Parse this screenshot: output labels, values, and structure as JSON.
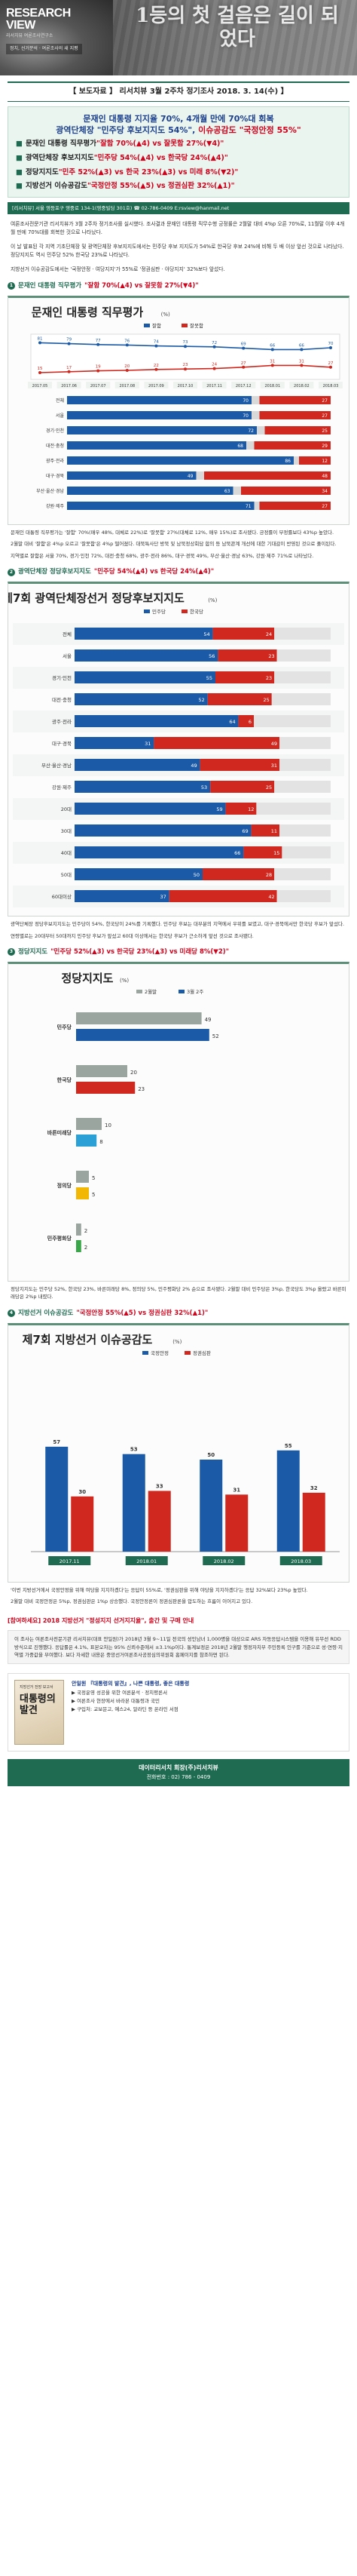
{
  "banner": {
    "brand_line1": "RESEARCH",
    "brand_line2": "VIEW",
    "brand_sub": "리서치뷰 여론조사연구소",
    "tag_text": "정치, 선거분석 · 여론조사의 새 지평",
    "slogan": "1등의 첫 걸음은 길이 되었다"
  },
  "header": {
    "release_title": "【 보도자료 】 리서치뷰 3월 2주차 정기조사 2018. 3. 14(수) 】",
    "headline_line1": "문재인 대통령 지지율 70%, 4개월 만에 70%대 회복",
    "headline_line2_a": "광역단체장 \"민주당 후보지지도 54%\", ",
    "headline_line2_b": "이슈공감도 \"국정안정 55%\"",
    "key_points": [
      {
        "label": "문재인 대통령 직무평가 ",
        "value": "\"잘함 70%(▲4) vs 잘못함 27%(▼4)\""
      },
      {
        "label": "광역단체장 후보지지도 ",
        "value": "\"민주당 54%(▲4) vs 한국당 24%(▲4)\""
      },
      {
        "label": "정당지지도 ",
        "value": "\"민주 52%(▲3) vs 한국 23%(▲3) vs 미래 8%(▼2)\""
      },
      {
        "label": "지방선거 이슈공감도 ",
        "value": "\"국정안정 55%(▲5) vs 정권심판 32%(▲1)\""
      }
    ],
    "contact": "[리서치뷰] 서울 영등포구 영중로 134-1(영중빌딩 301호) ☎ 02-786-0409   E:rsview@hanmail.net"
  },
  "intro": "여론조사전문기관 리서치뷰가 3월 2주차 정기조사를 실시했다. 조사결과 문재인 대통령 직무수행 긍정률은 2월말 대비 4%p 오른 70%로, 11월말 이후 4개월 만에 70%대를 회복한 것으로 나타났다.",
  "intro2": "이 날 발표된 각 지역 기초단체장 및 광역단체장 후보지지도에서는 민주당 후보 지지도가 54%로 한국당 후보 24%에 비해 두 배 이상 앞선 것으로 나타났다. 정당지지도 역시 민주당 52% 한국당 23%로 나타났다.",
  "intro3": "지방선거 이슈공감도에서는 '국정안정 · 여당지지'가 55%로 '정권심판 · 야당지지' 32%보다 앞섰다.",
  "sections": {
    "s1": {
      "title_a": "문재인 대통령 직무평가 ",
      "title_b": "\"잘함 70%(▲4) vs 잘못함 27%(▼4)\""
    },
    "s2": {
      "title_a": "광역단체장 정당후보지지도 ",
      "title_b": "\"민주당 54%(▲4) vs 한국당 24%(▲4)\""
    },
    "s3": {
      "title_a": "정당지지도 ",
      "title_b": "\"민주당 52%(▲3) vs 한국당 23%(▲3) vs 미래당 8%(▼2)\""
    },
    "s4": {
      "title_a": "지방선거 이슈공감도 ",
      "title_b": "\"국정안정 55%(▲5) vs 정권심판 32%(▲1)\""
    }
  },
  "captions": {
    "c1a": "문재인 대통령 직무평가는 '잘함' 70%(매우 48%, 대체로 22%)로 '잘못함' 27%(대체로 12%, 매우 15%)로 조사됐다. 긍정률이 부정률보다 43%p 높았다.",
    "c1b": "2월말 대비 '잘함'은 4%p 오르고 '잘못함'은 4%p 떨어졌다. 대북특사단 방북 및 남북정상회담 합의 등 남북관계 개선에 대한 기대감이 반영된 것으로 풀이된다.",
    "c1c": "지역별로 잘함은 서울 70%, 경기·인천 72%, 대전·충청 68%, 광주·전라 86%, 대구·경북 49%, 부산·울산·경남 63%, 강원·제주 71%로 나타났다.",
    "c2a": "광역단체장 정당후보지지도는 민주당이 54%, 한국당이 24%를 기록했다. 민주당 후보는 대부분의 지역에서 우위를 보였고, 대구·경북에서만 한국당 후보가 앞섰다.",
    "c2b": "연령별로는 20대부터 50대까지 민주당 후보가 앞섰고 60대 이상에서는 한국당 후보가 근소하게 앞선 것으로 조사됐다.",
    "c3a": "정당지지도는 민주당 52%, 한국당 23%, 바른미래당 8%, 정의당 5%, 민주평화당 2% 순으로 조사됐다. 2월말 대비 민주당은 3%p, 한국당도 3%p 올랐고 바른미래당은 2%p 내렸다.",
    "c4a": "'이번 지방선거에서 국정안정을 위해 여당을 지지하겠다'는 응답이 55%로, '정권심판을 위해 야당을 지지하겠다'는 응답 32%보다 23%p 높았다.",
    "c4b": "2월말 대비 국정안정은 5%p, 정권심판은 1%p 상승했다. 국정안정론이 정권심판론을 압도하는 흐름이 이어지고 있다."
  },
  "chart_meta": {
    "chart1_title": "문재인 대통령 직무평가",
    "chart2_title": "제7회 광역단체장선거 정당후보지지도",
    "chart3_title": "정당지지도",
    "chart4_title": "제7회 지방선거 이슈공감도",
    "unit": "(%)"
  },
  "chart_data": [
    {
      "type": "line",
      "title": "문재인 대통령 직무평가",
      "x": [
        "2017.05",
        "2017.06",
        "2017.07",
        "2017.08",
        "2017.09",
        "2017.10",
        "2017.11",
        "2017.12",
        "2018.01",
        "2018.02",
        "2018.03"
      ],
      "series": [
        {
          "name": "잘함",
          "values": [
            81,
            79,
            77,
            76,
            74,
            73,
            72,
            69,
            66,
            66,
            70
          ]
        },
        {
          "name": "잘못함",
          "values": [
            15,
            17,
            19,
            20,
            22,
            23,
            24,
            27,
            31,
            31,
            27
          ]
        }
      ],
      "ylim": [
        0,
        100
      ]
    },
    {
      "type": "bar",
      "title": "문재인 대통령 직무평가 지역별",
      "categories": [
        "전체",
        "서울",
        "경기·인천",
        "대전·충청",
        "광주·전라",
        "대구·경북",
        "부산·울산·경남",
        "강원·제주"
      ],
      "series": [
        {
          "name": "잘함",
          "values": [
            70,
            70,
            72,
            68,
            86,
            49,
            63,
            71
          ]
        },
        {
          "name": "잘못함",
          "values": [
            27,
            27,
            25,
            29,
            12,
            48,
            34,
            27
          ]
        }
      ],
      "ylim": [
        0,
        100
      ]
    },
    {
      "type": "bar",
      "title": "제7회 광역단체장선거 정당후보지지도",
      "categories": [
        "전체",
        "서울",
        "경기·인천",
        "대전·충청",
        "광주·전라",
        "대구·경북",
        "부산·울산·경남",
        "강원·제주",
        "20대",
        "30대",
        "40대",
        "50대",
        "60대이상"
      ],
      "series": [
        {
          "name": "민주당",
          "values": [
            54,
            56,
            55,
            52,
            64,
            31,
            49,
            53,
            59,
            69,
            66,
            50,
            37
          ]
        },
        {
          "name": "한국당",
          "values": [
            24,
            23,
            23,
            25,
            6,
            49,
            31,
            25,
            12,
            11,
            15,
            28,
            42
          ]
        }
      ],
      "ylim": [
        0,
        100
      ]
    },
    {
      "type": "bar",
      "title": "정당지지도",
      "categories": [
        "민주당",
        "한국당",
        "바른미래당",
        "정의당",
        "민주평화당"
      ],
      "series": [
        {
          "name": "2월말",
          "values": [
            49,
            20,
            10,
            5,
            2
          ]
        },
        {
          "name": "3월 2주",
          "values": [
            52,
            23,
            8,
            5,
            2
          ]
        }
      ],
      "ylim": [
        0,
        100
      ]
    },
    {
      "type": "bar",
      "title": "제7회 지방선거 이슈공감도",
      "categories": [
        "2017.11",
        "2018.01",
        "2018.02",
        "2018.03"
      ],
      "series": [
        {
          "name": "국정안정",
          "values": [
            57,
            53,
            50,
            55
          ]
        },
        {
          "name": "정권심판",
          "values": [
            30,
            33,
            31,
            32
          ]
        }
      ],
      "ylim": [
        0,
        100
      ]
    }
  ],
  "bottom": {
    "promo": "[참여하세요] 2018 지방선거 \"정성지지 선거지지율\", 출간 및 구매 안내",
    "note": "이 조사는 여론조사전문기관 리서치뷰(대표 안일원)가 2018년 3월 9~11일 전국의 성인남녀 1,000명을 대상으로 ARS 자동응답시스템을 이용해 유무선 RDD 방식으로 진행했다. 응답률은 4.1%, 표본오차는 95% 신뢰수준에서 ±3.1%p이다. 통계보정은 2018년 2월말 행정자치부 주민등록 인구를 기준으로 성·연령·지역별 가중값을 부여했다. 보다 자세한 내용은 중앙선거여론조사공정심의위원회 홈페이지를 참조하면 된다.",
    "book_small": "지방선거 전망 보고서",
    "book_title": "대통령의 발견",
    "ad_head": "안일원 『대통령의 발견』, 나쁜 대통령, 좋은 대통령",
    "ad_lines": [
      "▶ 국정운영 성공을 위한 여론분석 · 정치평론서",
      "▶ 여론조사 현장에서 바라본 대통령과 국민",
      "▶ 구입처: 교보문고, 예스24, 알라딘 등 온라인 서점"
    ],
    "footer_name": "데이터리서치 회장(주)리서치뷰",
    "footer_tel": "전화번호 : 02) 786 - 0409"
  }
}
